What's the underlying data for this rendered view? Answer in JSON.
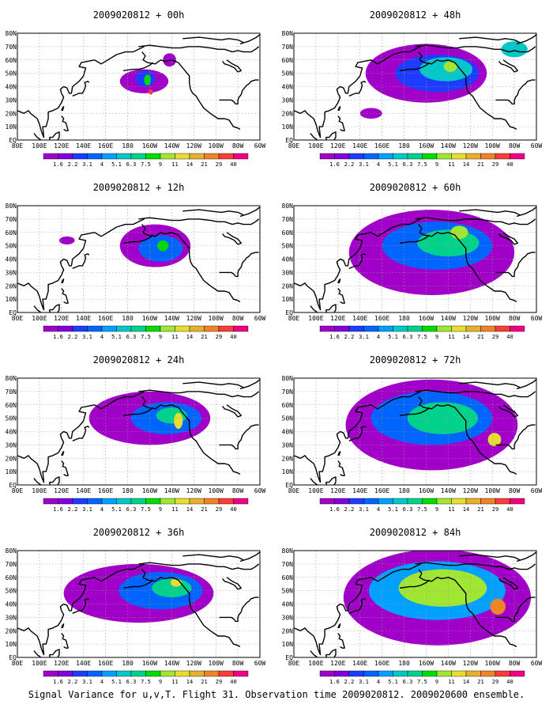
{
  "figure": {
    "caption": "Signal Variance for u,v,T. Flight 31. Observation time 2009020812. 2009020600 ensemble."
  },
  "colorbar": {
    "labels": [
      "1.6",
      "2.2",
      "3.1",
      "4",
      "5.1",
      "6.3",
      "7.5",
      "9",
      "11",
      "14",
      "21",
      "29",
      "40"
    ],
    "colors": [
      "#a000c8",
      "#8200dc",
      "#1e3cff",
      "#0064ff",
      "#00a0ff",
      "#00c8c8",
      "#00d28c",
      "#00dc00",
      "#a0e632",
      "#e6dc32",
      "#e6af2d",
      "#f08228",
      "#fa3c3c",
      "#f00082"
    ]
  },
  "axes": {
    "x_ticks": [
      "80E",
      "100E",
      "120E",
      "140E",
      "160E",
      "180",
      "160W",
      "140W",
      "120W",
      "100W",
      "80W",
      "60W"
    ],
    "y_ticks": [
      "80N",
      "70N",
      "60N",
      "50N",
      "40N",
      "30N",
      "20N",
      "10N",
      "EQ"
    ]
  },
  "chart_data": [
    {
      "type": "heatmap",
      "title": "2009020812 + 00h",
      "blobs": [
        {
          "lon": 195,
          "lat": 44,
          "rlon": 22,
          "rlat": 9,
          "level": 0
        },
        {
          "lon": 218,
          "lat": 60,
          "rlon": 6,
          "rlat": 5,
          "level": 0
        },
        {
          "lon": 196,
          "lat": 46,
          "rlon": 9,
          "rlat": 6,
          "level": 2
        },
        {
          "lon": 198,
          "lat": 45,
          "rlon": 3,
          "rlat": 4,
          "level": 7
        },
        {
          "lon": 201,
          "lat": 36,
          "rlon": 2,
          "rlat": 2,
          "level": 12
        }
      ]
    },
    {
      "type": "heatmap",
      "title": "2009020812 + 48h",
      "blobs": [
        {
          "lon": 200,
          "lat": 50,
          "rlon": 55,
          "rlat": 22,
          "level": 0
        },
        {
          "lon": 210,
          "lat": 50,
          "rlon": 38,
          "rlat": 14,
          "level": 2
        },
        {
          "lon": 218,
          "lat": 53,
          "rlon": 24,
          "rlat": 9,
          "level": 5
        },
        {
          "lon": 222,
          "lat": 55,
          "rlon": 6,
          "rlat": 4,
          "level": 8
        },
        {
          "lon": 280,
          "lat": 68,
          "rlon": 12,
          "rlat": 6,
          "level": 5
        },
        {
          "lon": 150,
          "lat": 20,
          "rlon": 10,
          "rlat": 4,
          "level": 0
        }
      ]
    },
    {
      "type": "heatmap",
      "title": "2009020812 + 12h",
      "blobs": [
        {
          "lon": 205,
          "lat": 50,
          "rlon": 32,
          "rlat": 16,
          "level": 0
        },
        {
          "lon": 210,
          "lat": 48,
          "rlon": 20,
          "rlat": 10,
          "level": 3
        },
        {
          "lon": 212,
          "lat": 50,
          "rlon": 5,
          "rlat": 4,
          "level": 7
        },
        {
          "lon": 125,
          "lat": 54,
          "rlon": 7,
          "rlat": 3,
          "level": 0
        }
      ]
    },
    {
      "type": "heatmap",
      "title": "2009020812 + 60h",
      "blobs": [
        {
          "lon": 205,
          "lat": 45,
          "rlon": 75,
          "rlat": 32,
          "level": 0
        },
        {
          "lon": 210,
          "lat": 50,
          "rlon": 50,
          "rlat": 18,
          "level": 3
        },
        {
          "lon": 220,
          "lat": 52,
          "rlon": 28,
          "rlat": 10,
          "level": 6
        },
        {
          "lon": 230,
          "lat": 60,
          "rlon": 8,
          "rlat": 5,
          "level": 8
        }
      ]
    },
    {
      "type": "heatmap",
      "title": "2009020812 + 24h",
      "blobs": [
        {
          "lon": 200,
          "lat": 50,
          "rlon": 55,
          "rlat": 20,
          "level": 0
        },
        {
          "lon": 215,
          "lat": 50,
          "rlon": 32,
          "rlat": 12,
          "level": 3
        },
        {
          "lon": 220,
          "lat": 52,
          "rlon": 14,
          "rlat": 6,
          "level": 6
        },
        {
          "lon": 226,
          "lat": 48,
          "rlon": 4,
          "rlat": 6,
          "level": 9
        }
      ]
    },
    {
      "type": "heatmap",
      "title": "2009020812 + 72h",
      "blobs": [
        {
          "lon": 205,
          "lat": 45,
          "rlon": 78,
          "rlat": 34,
          "level": 0
        },
        {
          "lon": 205,
          "lat": 50,
          "rlon": 55,
          "rlat": 20,
          "level": 3
        },
        {
          "lon": 215,
          "lat": 50,
          "rlon": 32,
          "rlat": 12,
          "level": 6
        },
        {
          "lon": 262,
          "lat": 34,
          "rlon": 6,
          "rlat": 5,
          "level": 9
        }
      ]
    },
    {
      "type": "heatmap",
      "title": "2009020812 + 36h",
      "blobs": [
        {
          "lon": 190,
          "lat": 48,
          "rlon": 68,
          "rlat": 22,
          "level": 0
        },
        {
          "lon": 210,
          "lat": 50,
          "rlon": 38,
          "rlat": 14,
          "level": 3
        },
        {
          "lon": 220,
          "lat": 52,
          "rlon": 18,
          "rlat": 7,
          "level": 6
        },
        {
          "lon": 224,
          "lat": 56,
          "rlon": 5,
          "rlat": 3,
          "level": 9
        }
      ]
    },
    {
      "type": "heatmap",
      "title": "2009020812 + 84h",
      "blobs": [
        {
          "lon": 210,
          "lat": 45,
          "rlon": 85,
          "rlat": 36,
          "level": 0
        },
        {
          "lon": 210,
          "lat": 50,
          "rlon": 62,
          "rlat": 22,
          "level": 4
        },
        {
          "lon": 215,
          "lat": 52,
          "rlon": 40,
          "rlat": 14,
          "level": 8
        },
        {
          "lon": 265,
          "lat": 38,
          "rlon": 7,
          "rlat": 6,
          "level": 11
        }
      ]
    }
  ]
}
